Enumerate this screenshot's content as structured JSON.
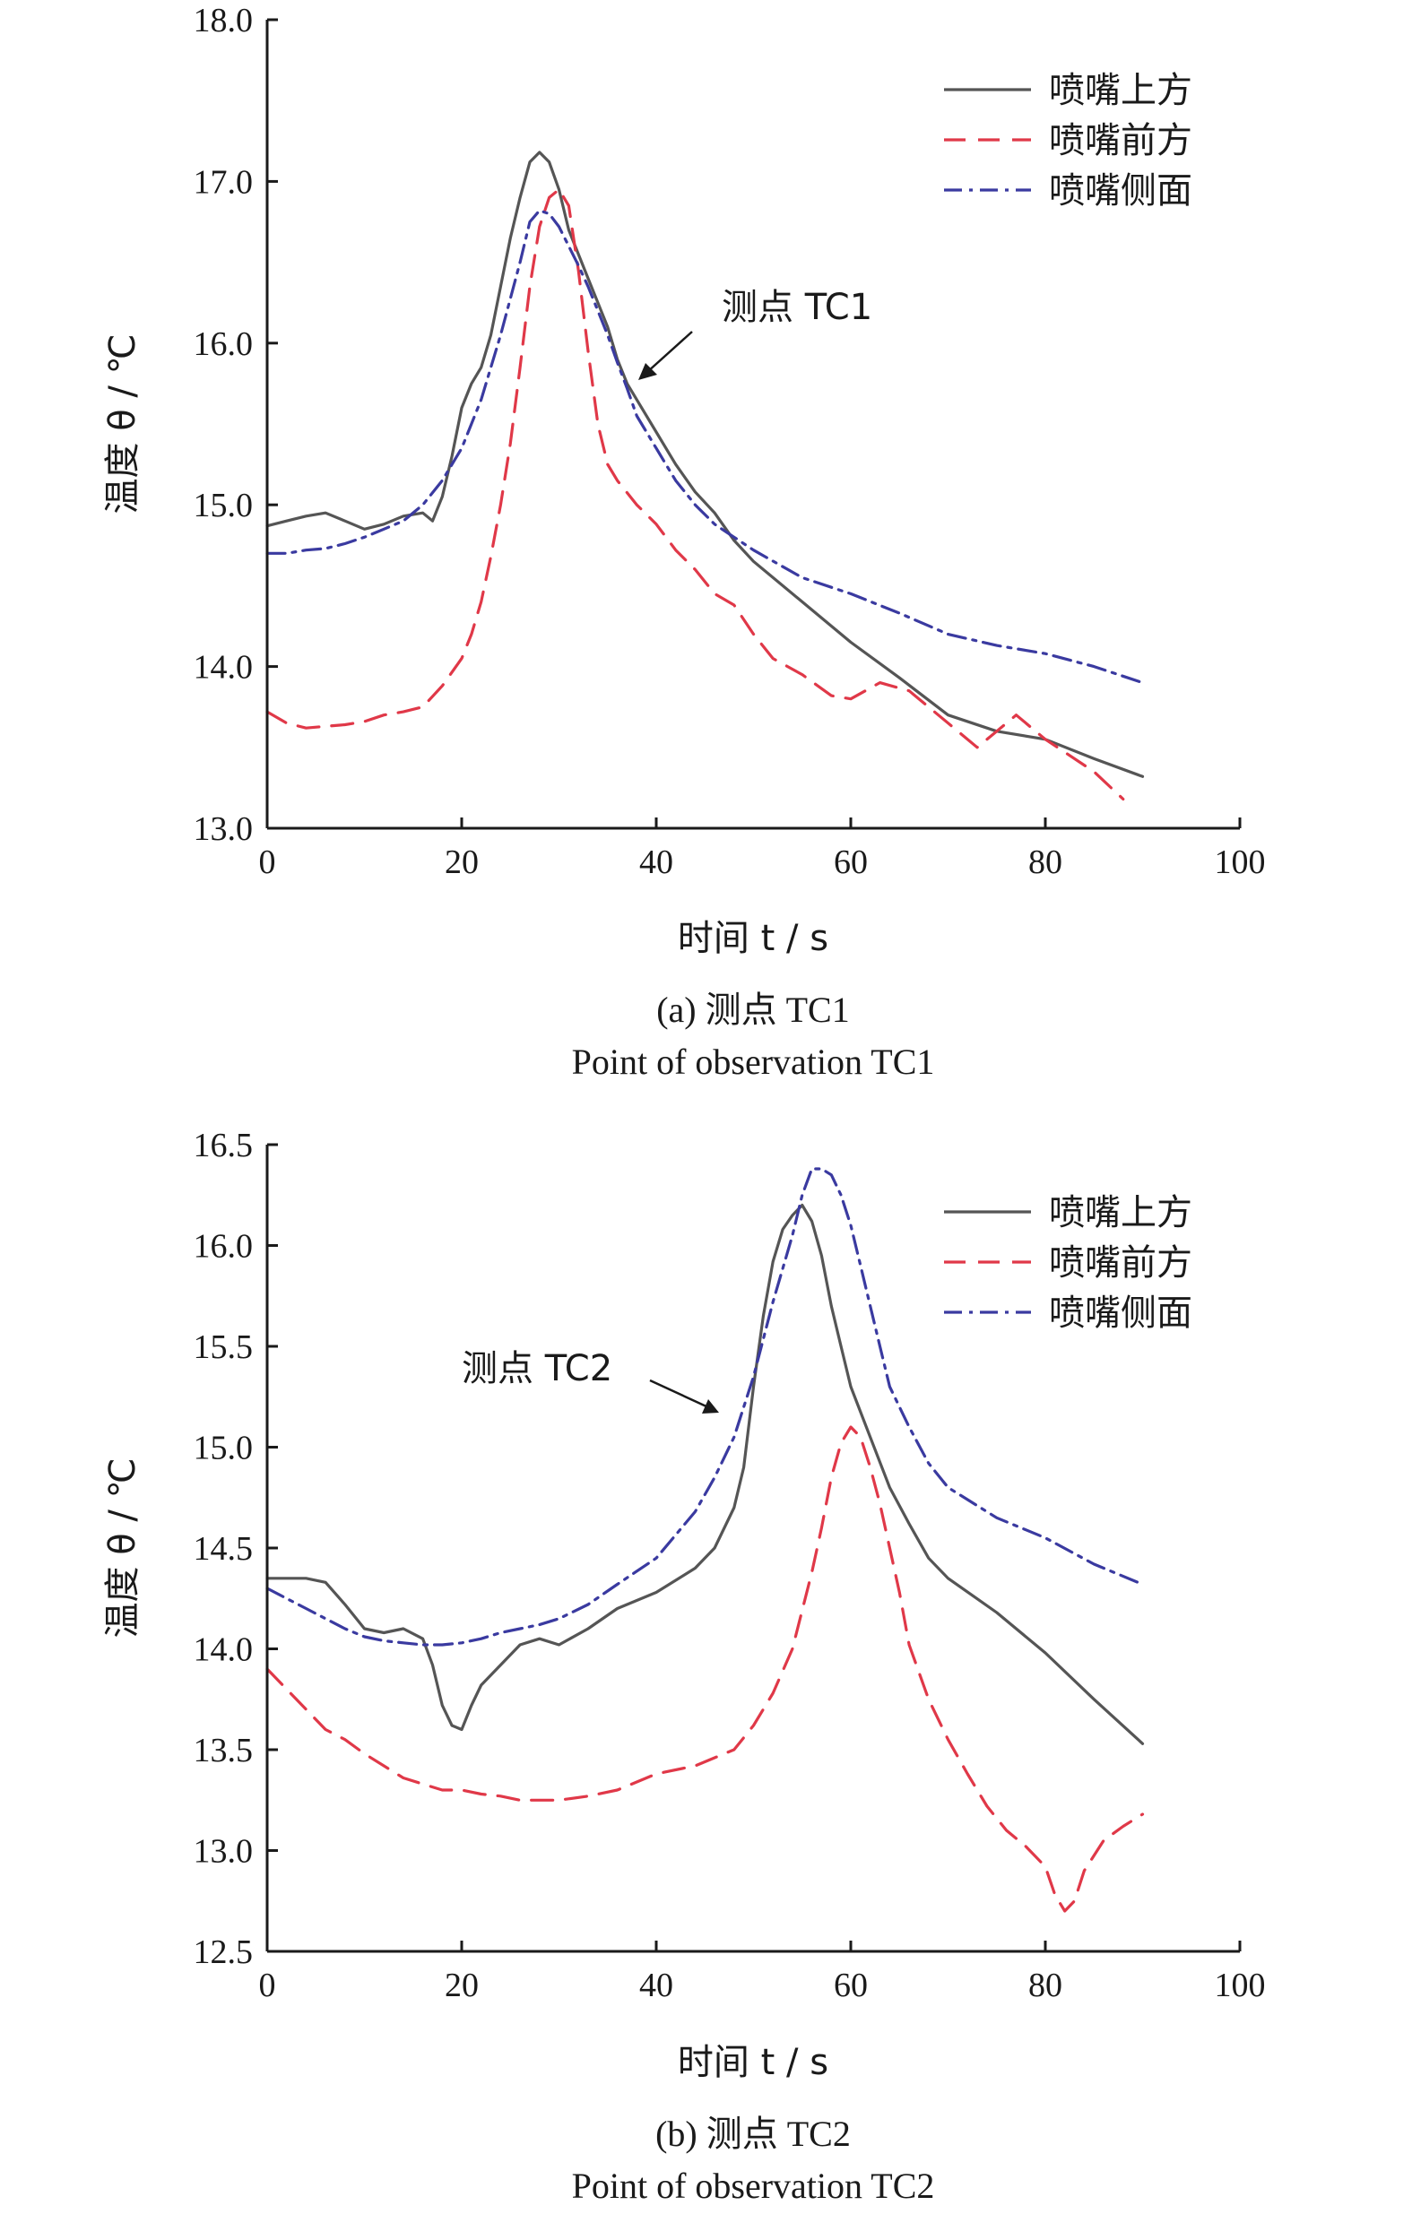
{
  "legend": {
    "items": [
      {
        "key": "above",
        "label": "喷嘴上方",
        "color": "#555555",
        "dash": "solid"
      },
      {
        "key": "front",
        "label": "喷嘴前方",
        "color": "#e03848",
        "dash": "dashed"
      },
      {
        "key": "side",
        "label": "喷嘴侧面",
        "color": "#3a3aa0",
        "dash": "dashdot"
      }
    ]
  },
  "chart_data": [
    {
      "type": "line",
      "panel": "a",
      "caption_cn": "(a) 测点 TC1",
      "caption_en": "Point of observation TC1",
      "xlabel": "时间 t / s",
      "ylabel": "温度 θ / ℃",
      "xlim": [
        0,
        100
      ],
      "ylim": [
        13.0,
        18.0
      ],
      "xticks": [
        0,
        20,
        40,
        60,
        80,
        100
      ],
      "yticks": [
        13.0,
        14.0,
        15.0,
        16.0,
        17.0,
        18.0
      ],
      "xtick_labels": [
        "0",
        "20",
        "40",
        "60",
        "80",
        "100"
      ],
      "ytick_labels": [
        "13.0",
        "14.0",
        "15.0",
        "16.0",
        "17.0",
        "18.0"
      ],
      "legend_position": "top-right",
      "annotation": {
        "text": "测点 TC1",
        "target": [
          38.5,
          15.7
        ]
      },
      "series": [
        {
          "key": "above",
          "name": "喷嘴上方",
          "x": [
            0,
            2,
            4,
            6,
            8,
            10,
            12,
            14,
            16,
            17,
            18,
            19,
            20,
            21,
            22,
            23,
            24,
            25,
            26,
            27,
            28,
            29,
            30,
            31,
            32,
            33,
            34,
            35,
            36,
            37,
            38,
            40,
            42,
            44,
            46,
            48,
            50,
            55,
            60,
            65,
            70,
            75,
            80,
            85,
            90
          ],
          "y": [
            14.87,
            14.9,
            14.93,
            14.95,
            14.9,
            14.85,
            14.88,
            14.93,
            14.95,
            14.9,
            15.05,
            15.3,
            15.6,
            15.75,
            15.85,
            16.05,
            16.35,
            16.65,
            16.9,
            17.12,
            17.18,
            17.12,
            16.95,
            16.7,
            16.55,
            16.4,
            16.25,
            16.1,
            15.9,
            15.75,
            15.65,
            15.45,
            15.25,
            15.08,
            14.95,
            14.78,
            14.65,
            14.4,
            14.15,
            13.93,
            13.7,
            13.6,
            13.55,
            13.43,
            13.32
          ]
        },
        {
          "key": "front",
          "name": "喷嘴前方",
          "x": [
            0,
            2,
            4,
            6,
            8,
            10,
            12,
            14,
            16,
            18,
            20,
            21,
            22,
            23,
            24,
            25,
            26,
            27,
            28,
            29,
            30,
            31,
            32,
            33,
            34,
            35,
            36,
            38,
            40,
            42,
            44,
            46,
            48,
            50,
            52,
            55,
            58,
            60,
            63,
            66,
            70,
            73,
            75,
            77,
            80,
            85,
            88
          ],
          "y": [
            13.72,
            13.65,
            13.62,
            13.63,
            13.64,
            13.66,
            13.7,
            13.72,
            13.75,
            13.88,
            14.05,
            14.2,
            14.4,
            14.68,
            15.0,
            15.38,
            15.85,
            16.35,
            16.72,
            16.9,
            16.95,
            16.85,
            16.45,
            15.95,
            15.5,
            15.25,
            15.15,
            15.0,
            14.88,
            14.72,
            14.6,
            14.45,
            14.38,
            14.2,
            14.05,
            13.95,
            13.82,
            13.8,
            13.9,
            13.85,
            13.65,
            13.5,
            13.6,
            13.7,
            13.55,
            13.35,
            13.18
          ]
        },
        {
          "key": "side",
          "name": "喷嘴侧面",
          "x": [
            0,
            2,
            4,
            6,
            8,
            10,
            12,
            14,
            16,
            18,
            20,
            22,
            24,
            26,
            27,
            28,
            29,
            30,
            31,
            32,
            33,
            34,
            35,
            36,
            37,
            38,
            40,
            42,
            44,
            46,
            48,
            50,
            55,
            60,
            65,
            70,
            75,
            80,
            85,
            90
          ],
          "y": [
            14.7,
            14.7,
            14.72,
            14.73,
            14.76,
            14.8,
            14.85,
            14.9,
            15.0,
            15.15,
            15.35,
            15.65,
            16.05,
            16.5,
            16.75,
            16.82,
            16.8,
            16.72,
            16.6,
            16.48,
            16.35,
            16.2,
            16.05,
            15.88,
            15.72,
            15.55,
            15.35,
            15.15,
            15.0,
            14.88,
            14.8,
            14.72,
            14.55,
            14.45,
            14.33,
            14.2,
            14.13,
            14.08,
            14.0,
            13.9
          ]
        }
      ]
    },
    {
      "type": "line",
      "panel": "b",
      "caption_cn": "(b) 测点 TC2",
      "caption_en": "Point of observation TC2",
      "xlabel": "时间 t / s",
      "ylabel": "温度 θ / ℃",
      "xlim": [
        0,
        100
      ],
      "ylim": [
        12.5,
        16.5
      ],
      "xticks": [
        0,
        20,
        40,
        60,
        80,
        100
      ],
      "yticks": [
        12.5,
        13.0,
        13.5,
        14.0,
        14.5,
        15.0,
        15.5,
        16.0,
        16.5
      ],
      "xtick_labels": [
        "0",
        "20",
        "40",
        "60",
        "80",
        "100"
      ],
      "ytick_labels": [
        "12.5",
        "13.0",
        "13.5",
        "14.0",
        "14.5",
        "15.0",
        "15.5",
        "16.0",
        "16.5"
      ],
      "legend_position": "top-right",
      "annotation": {
        "text": "测点 TC2",
        "target": [
          46.5,
          15.15
        ]
      },
      "series": [
        {
          "key": "above",
          "name": "喷嘴上方",
          "x": [
            0,
            2,
            4,
            6,
            8,
            10,
            12,
            14,
            16,
            17,
            18,
            19,
            20,
            21,
            22,
            24,
            26,
            28,
            30,
            33,
            36,
            40,
            44,
            46,
            48,
            49,
            50,
            51,
            52,
            53,
            54,
            55,
            56,
            57,
            58,
            59,
            60,
            62,
            64,
            66,
            68,
            70,
            75,
            80,
            85,
            90
          ],
          "y": [
            14.35,
            14.35,
            14.35,
            14.33,
            14.22,
            14.1,
            14.08,
            14.1,
            14.05,
            13.92,
            13.72,
            13.62,
            13.6,
            13.72,
            13.82,
            13.92,
            14.02,
            14.05,
            14.02,
            14.1,
            14.2,
            14.28,
            14.4,
            14.5,
            14.7,
            14.9,
            15.3,
            15.65,
            15.92,
            16.08,
            16.15,
            16.2,
            16.12,
            15.95,
            15.7,
            15.5,
            15.3,
            15.05,
            14.8,
            14.62,
            14.45,
            14.35,
            14.18,
            13.98,
            13.75,
            13.53
          ]
        },
        {
          "key": "front",
          "name": "喷嘴前方",
          "x": [
            0,
            2,
            4,
            6,
            8,
            10,
            12,
            14,
            16,
            18,
            20,
            22,
            24,
            26,
            28,
            30,
            33,
            36,
            40,
            44,
            48,
            50,
            52,
            54,
            56,
            57,
            58,
            59,
            60,
            61,
            62,
            63,
            64,
            65,
            66,
            68,
            70,
            72,
            74,
            76,
            78,
            80,
            81,
            82,
            83,
            84,
            86,
            88,
            90
          ],
          "y": [
            13.9,
            13.8,
            13.7,
            13.6,
            13.55,
            13.48,
            13.42,
            13.36,
            13.33,
            13.3,
            13.3,
            13.28,
            13.27,
            13.25,
            13.25,
            13.25,
            13.27,
            13.3,
            13.38,
            13.42,
            13.5,
            13.62,
            13.78,
            14.0,
            14.38,
            14.6,
            14.85,
            15.02,
            15.1,
            15.05,
            14.9,
            14.72,
            14.5,
            14.28,
            14.02,
            13.75,
            13.55,
            13.38,
            13.22,
            13.1,
            13.02,
            12.92,
            12.78,
            12.7,
            12.75,
            12.9,
            13.05,
            13.12,
            13.18
          ]
        },
        {
          "key": "side",
          "name": "喷嘴侧面",
          "x": [
            0,
            2,
            4,
            6,
            8,
            10,
            12,
            14,
            16,
            18,
            20,
            22,
            24,
            26,
            28,
            30,
            33,
            36,
            40,
            44,
            46,
            48,
            50,
            52,
            54,
            55,
            56,
            57,
            58,
            59,
            60,
            61,
            62,
            63,
            64,
            66,
            68,
            70,
            75,
            80,
            85,
            90
          ],
          "y": [
            14.3,
            14.25,
            14.2,
            14.15,
            14.1,
            14.06,
            14.04,
            14.03,
            14.02,
            14.02,
            14.03,
            14.05,
            14.08,
            14.1,
            14.12,
            14.15,
            14.22,
            14.32,
            14.45,
            14.68,
            14.85,
            15.05,
            15.35,
            15.72,
            16.05,
            16.25,
            16.38,
            16.38,
            16.35,
            16.25,
            16.1,
            15.9,
            15.7,
            15.5,
            15.3,
            15.1,
            14.92,
            14.8,
            14.65,
            14.55,
            14.42,
            14.32
          ]
        }
      ]
    }
  ]
}
